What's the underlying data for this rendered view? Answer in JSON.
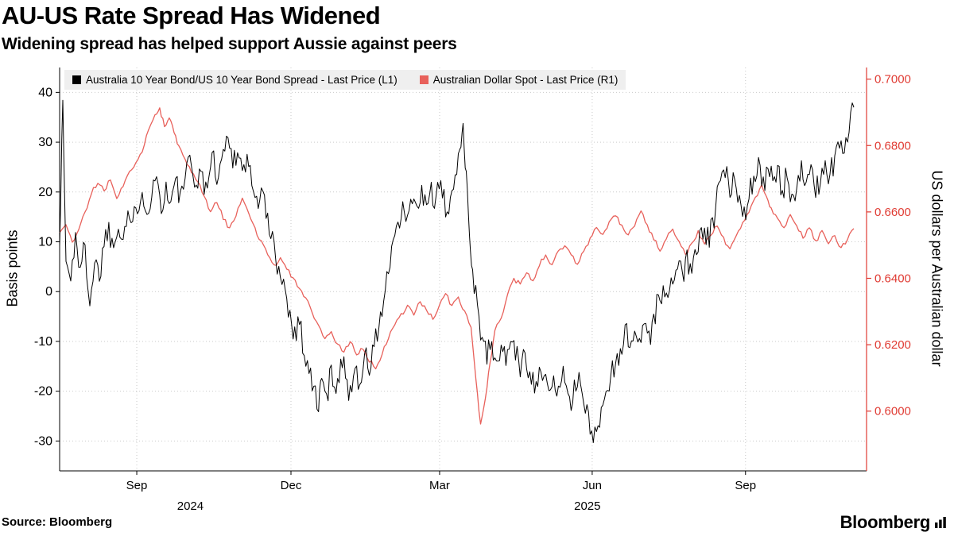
{
  "header": {
    "title": "AU-US Rate Spread Has Widened",
    "subtitle": "Widening spread has helped support Aussie against peers"
  },
  "footer": {
    "source": "Source: Bloomberg",
    "brand": "Bloomberg"
  },
  "colors": {
    "black_line": "#000000",
    "red_line": "#e8615b",
    "red_axis": "#e03b33",
    "grid": "#c9c9c9",
    "legend_bg": "#efefef"
  },
  "chart_data": {
    "type": "line",
    "title": "AU-US Rate Spread Has Widened",
    "legend_position": "top",
    "grid": "dotted",
    "x_ticks": [
      {
        "label": "Sep",
        "pos": 0.0956
      },
      {
        "label": "Dec",
        "pos": 0.2867
      },
      {
        "label": "Mar",
        "pos": 0.4709
      },
      {
        "label": "Jun",
        "pos": 0.66
      },
      {
        "label": "Sep",
        "pos": 0.85
      }
    ],
    "x_years": [
      {
        "label": "2024",
        "pos": 0.162
      },
      {
        "label": "2025",
        "pos": 0.654
      }
    ],
    "left_axis": {
      "label": "Basis points",
      "ticks": [
        40,
        30,
        20,
        10,
        0,
        -10,
        -20,
        -30
      ],
      "range": [
        -36,
        45
      ]
    },
    "right_axis": {
      "label": "US dollars per Australian dollar",
      "ticks": [
        0.7,
        0.68,
        0.66,
        0.64,
        0.62,
        0.6
      ],
      "decimals": 4,
      "range": [
        0.582,
        0.7035
      ]
    },
    "series": [
      {
        "name": "Australia 10 Year Bond/US 10 Year Bond Spread - Last Price (L1)",
        "axis": "left",
        "color": "#000000",
        "width": 1,
        "noise": 3.0,
        "seed": 1337,
        "points": [
          [
            0.0,
            10
          ],
          [
            0.004,
            38
          ],
          [
            0.008,
            6
          ],
          [
            0.014,
            2
          ],
          [
            0.02,
            12
          ],
          [
            0.026,
            4
          ],
          [
            0.032,
            9
          ],
          [
            0.038,
            -2
          ],
          [
            0.044,
            6
          ],
          [
            0.05,
            3
          ],
          [
            0.056,
            10
          ],
          [
            0.062,
            13
          ],
          [
            0.068,
            9
          ],
          [
            0.074,
            14
          ],
          [
            0.08,
            11
          ],
          [
            0.086,
            16
          ],
          [
            0.092,
            13
          ],
          [
            0.098,
            17
          ],
          [
            0.104,
            21
          ],
          [
            0.11,
            16
          ],
          [
            0.116,
            20
          ],
          [
            0.122,
            23
          ],
          [
            0.128,
            17
          ],
          [
            0.134,
            21
          ],
          [
            0.14,
            18
          ],
          [
            0.146,
            22
          ],
          [
            0.152,
            19
          ],
          [
            0.158,
            23
          ],
          [
            0.164,
            26
          ],
          [
            0.17,
            21
          ],
          [
            0.176,
            25
          ],
          [
            0.182,
            20
          ],
          [
            0.188,
            24
          ],
          [
            0.194,
            27
          ],
          [
            0.2,
            23
          ],
          [
            0.206,
            28
          ],
          [
            0.212,
            31
          ],
          [
            0.218,
            26
          ],
          [
            0.224,
            29
          ],
          [
            0.23,
            24
          ],
          [
            0.236,
            27
          ],
          [
            0.242,
            22
          ],
          [
            0.248,
            18
          ],
          [
            0.254,
            21
          ],
          [
            0.26,
            15
          ],
          [
            0.266,
            11
          ],
          [
            0.272,
            7
          ],
          [
            0.278,
            4
          ],
          [
            0.284,
            0
          ],
          [
            0.29,
            -4
          ],
          [
            0.296,
            -8
          ],
          [
            0.302,
            -6
          ],
          [
            0.308,
            -12
          ],
          [
            0.314,
            -16
          ],
          [
            0.32,
            -20
          ],
          [
            0.326,
            -23
          ],
          [
            0.33,
            -18
          ],
          [
            0.336,
            -21
          ],
          [
            0.342,
            -16
          ],
          [
            0.348,
            -19
          ],
          [
            0.354,
            -14
          ],
          [
            0.36,
            -17
          ],
          [
            0.366,
            -20
          ],
          [
            0.372,
            -15
          ],
          [
            0.378,
            -18
          ],
          [
            0.384,
            -13
          ],
          [
            0.39,
            -16
          ],
          [
            0.396,
            -11
          ],
          [
            0.402,
            -7
          ],
          [
            0.408,
            -2
          ],
          [
            0.414,
            4
          ],
          [
            0.42,
            9
          ],
          [
            0.426,
            13
          ],
          [
            0.432,
            17
          ],
          [
            0.438,
            14
          ],
          [
            0.444,
            19
          ],
          [
            0.45,
            16
          ],
          [
            0.456,
            20
          ],
          [
            0.462,
            17
          ],
          [
            0.468,
            21
          ],
          [
            0.474,
            18
          ],
          [
            0.48,
            21
          ],
          [
            0.486,
            16
          ],
          [
            0.492,
            19
          ],
          [
            0.498,
            22
          ],
          [
            0.504,
            28
          ],
          [
            0.508,
            35
          ],
          [
            0.512,
            24
          ],
          [
            0.516,
            12
          ],
          [
            0.52,
            4
          ],
          [
            0.526,
            -3
          ],
          [
            0.532,
            -9
          ],
          [
            0.538,
            -14
          ],
          [
            0.544,
            -10
          ],
          [
            0.55,
            -15
          ],
          [
            0.556,
            -11
          ],
          [
            0.562,
            -14
          ],
          [
            0.568,
            -9
          ],
          [
            0.574,
            -13
          ],
          [
            0.58,
            -16
          ],
          [
            0.586,
            -12
          ],
          [
            0.592,
            -16
          ],
          [
            0.598,
            -19
          ],
          [
            0.604,
            -15
          ],
          [
            0.61,
            -18
          ],
          [
            0.616,
            -21
          ],
          [
            0.622,
            -17
          ],
          [
            0.628,
            -20
          ],
          [
            0.634,
            -16
          ],
          [
            0.64,
            -19
          ],
          [
            0.646,
            -22
          ],
          [
            0.652,
            -18
          ],
          [
            0.658,
            -21
          ],
          [
            0.664,
            -24
          ],
          [
            0.67,
            -27
          ],
          [
            0.676,
            -29
          ],
          [
            0.682,
            -24
          ],
          [
            0.688,
            -20
          ],
          [
            0.694,
            -17
          ],
          [
            0.7,
            -14
          ],
          [
            0.706,
            -11
          ],
          [
            0.712,
            -8
          ],
          [
            0.718,
            -11
          ],
          [
            0.724,
            -7
          ],
          [
            0.73,
            -10
          ],
          [
            0.736,
            -6
          ],
          [
            0.742,
            -9
          ],
          [
            0.748,
            -5
          ],
          [
            0.754,
            -2
          ],
          [
            0.76,
            1
          ],
          [
            0.766,
            -2
          ],
          [
            0.772,
            2
          ],
          [
            0.778,
            6
          ],
          [
            0.784,
            3
          ],
          [
            0.79,
            7
          ],
          [
            0.796,
            4
          ],
          [
            0.802,
            8
          ],
          [
            0.808,
            12
          ],
          [
            0.814,
            9
          ],
          [
            0.82,
            13
          ],
          [
            0.826,
            17
          ],
          [
            0.832,
            21
          ],
          [
            0.838,
            24
          ],
          [
            0.844,
            20
          ],
          [
            0.85,
            24
          ],
          [
            0.856,
            19
          ],
          [
            0.862,
            16
          ],
          [
            0.868,
            20
          ],
          [
            0.874,
            23
          ],
          [
            0.88,
            26
          ],
          [
            0.886,
            22
          ],
          [
            0.892,
            25
          ],
          [
            0.898,
            21
          ],
          [
            0.904,
            24
          ],
          [
            0.91,
            20
          ],
          [
            0.916,
            23
          ],
          [
            0.922,
            19
          ],
          [
            0.928,
            22
          ],
          [
            0.934,
            25
          ],
          [
            0.94,
            21
          ],
          [
            0.946,
            24
          ],
          [
            0.952,
            20
          ],
          [
            0.958,
            23
          ],
          [
            0.964,
            26
          ],
          [
            0.97,
            23
          ],
          [
            0.976,
            27
          ],
          [
            0.982,
            30
          ],
          [
            0.988,
            28
          ],
          [
            0.994,
            33
          ],
          [
            1.0,
            37
          ]
        ]
      },
      {
        "name": "Australian Dollar Spot - Last Price (R1)",
        "axis": "right",
        "color": "#e8615b",
        "width": 1.3,
        "noise": 0.0008,
        "seed": 2024,
        "points": [
          [
            0.0,
            0.6535
          ],
          [
            0.008,
            0.656
          ],
          [
            0.016,
            0.651
          ],
          [
            0.024,
            0.6545
          ],
          [
            0.032,
            0.66
          ],
          [
            0.04,
            0.6655
          ],
          [
            0.048,
            0.669
          ],
          [
            0.056,
            0.666
          ],
          [
            0.064,
            0.67
          ],
          [
            0.072,
            0.664
          ],
          [
            0.08,
            0.668
          ],
          [
            0.088,
            0.672
          ],
          [
            0.096,
            0.675
          ],
          [
            0.104,
            0.678
          ],
          [
            0.112,
            0.685
          ],
          [
            0.12,
            0.689
          ],
          [
            0.126,
            0.691
          ],
          [
            0.132,
            0.686
          ],
          [
            0.138,
            0.688
          ],
          [
            0.144,
            0.684
          ],
          [
            0.15,
            0.68
          ],
          [
            0.158,
            0.676
          ],
          [
            0.166,
            0.672
          ],
          [
            0.174,
            0.669
          ],
          [
            0.182,
            0.665
          ],
          [
            0.19,
            0.66
          ],
          [
            0.198,
            0.663
          ],
          [
            0.206,
            0.658
          ],
          [
            0.214,
            0.655
          ],
          [
            0.222,
            0.659
          ],
          [
            0.23,
            0.664
          ],
          [
            0.238,
            0.66
          ],
          [
            0.246,
            0.655
          ],
          [
            0.254,
            0.651
          ],
          [
            0.262,
            0.647
          ],
          [
            0.27,
            0.644
          ],
          [
            0.278,
            0.646
          ],
          [
            0.286,
            0.643
          ],
          [
            0.294,
            0.64
          ],
          [
            0.302,
            0.637
          ],
          [
            0.31,
            0.634
          ],
          [
            0.318,
            0.63
          ],
          [
            0.326,
            0.626
          ],
          [
            0.334,
            0.622
          ],
          [
            0.342,
            0.624
          ],
          [
            0.35,
            0.62
          ],
          [
            0.358,
            0.618
          ],
          [
            0.366,
            0.621
          ],
          [
            0.374,
            0.617
          ],
          [
            0.382,
            0.619
          ],
          [
            0.39,
            0.615
          ],
          [
            0.398,
            0.613
          ],
          [
            0.406,
            0.617
          ],
          [
            0.414,
            0.622
          ],
          [
            0.422,
            0.626
          ],
          [
            0.43,
            0.629
          ],
          [
            0.438,
            0.632
          ],
          [
            0.446,
            0.629
          ],
          [
            0.454,
            0.633
          ],
          [
            0.462,
            0.63
          ],
          [
            0.47,
            0.628
          ],
          [
            0.478,
            0.632
          ],
          [
            0.486,
            0.635
          ],
          [
            0.494,
            0.632
          ],
          [
            0.502,
            0.634
          ],
          [
            0.51,
            0.63
          ],
          [
            0.518,
            0.625
          ],
          [
            0.524,
            0.61
          ],
          [
            0.53,
            0.596
          ],
          [
            0.536,
            0.604
          ],
          [
            0.542,
            0.615
          ],
          [
            0.548,
            0.624
          ],
          [
            0.556,
            0.628
          ],
          [
            0.564,
            0.635
          ],
          [
            0.572,
            0.64
          ],
          [
            0.58,
            0.638
          ],
          [
            0.588,
            0.642
          ],
          [
            0.596,
            0.639
          ],
          [
            0.604,
            0.644
          ],
          [
            0.612,
            0.647
          ],
          [
            0.62,
            0.644
          ],
          [
            0.628,
            0.648
          ],
          [
            0.636,
            0.65
          ],
          [
            0.644,
            0.647
          ],
          [
            0.652,
            0.644
          ],
          [
            0.66,
            0.648
          ],
          [
            0.668,
            0.652
          ],
          [
            0.676,
            0.655
          ],
          [
            0.684,
            0.653
          ],
          [
            0.692,
            0.657
          ],
          [
            0.7,
            0.659
          ],
          [
            0.708,
            0.656
          ],
          [
            0.716,
            0.653
          ],
          [
            0.724,
            0.656
          ],
          [
            0.732,
            0.66
          ],
          [
            0.74,
            0.656
          ],
          [
            0.748,
            0.652
          ],
          [
            0.756,
            0.648
          ],
          [
            0.764,
            0.652
          ],
          [
            0.772,
            0.655
          ],
          [
            0.78,
            0.651
          ],
          [
            0.788,
            0.647
          ],
          [
            0.796,
            0.651
          ],
          [
            0.804,
            0.654
          ],
          [
            0.812,
            0.65
          ],
          [
            0.82,
            0.653
          ],
          [
            0.828,
            0.656
          ],
          [
            0.836,
            0.652
          ],
          [
            0.844,
            0.649
          ],
          [
            0.852,
            0.653
          ],
          [
            0.86,
            0.657
          ],
          [
            0.868,
            0.66
          ],
          [
            0.876,
            0.664
          ],
          [
            0.884,
            0.668
          ],
          [
            0.89,
            0.665
          ],
          [
            0.896,
            0.661
          ],
          [
            0.904,
            0.658
          ],
          [
            0.912,
            0.655
          ],
          [
            0.92,
            0.659
          ],
          [
            0.928,
            0.656
          ],
          [
            0.936,
            0.652
          ],
          [
            0.944,
            0.655
          ],
          [
            0.952,
            0.651
          ],
          [
            0.96,
            0.654
          ],
          [
            0.968,
            0.65
          ],
          [
            0.976,
            0.653
          ],
          [
            0.984,
            0.649
          ],
          [
            0.992,
            0.652
          ],
          [
            1.0,
            0.655
          ]
        ]
      }
    ]
  }
}
